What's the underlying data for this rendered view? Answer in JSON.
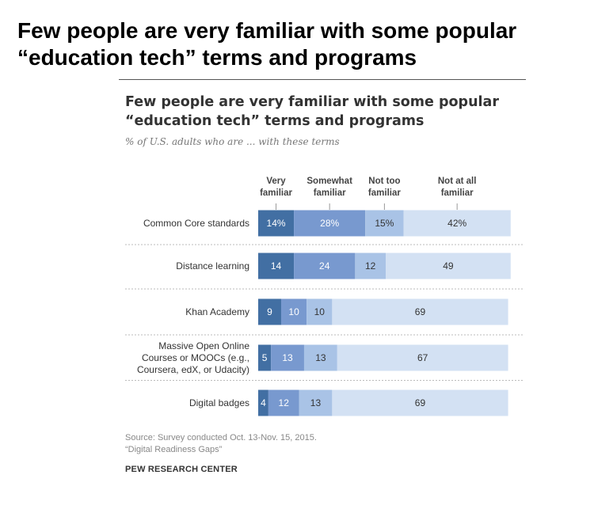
{
  "headline": "Few people are very familiar with some popular “education tech” terms and programs",
  "chart_data": {
    "type": "bar",
    "orientation": "horizontal",
    "stacked": true,
    "title_lines": [
      "Few people are very familiar with some popular",
      "“education tech” terms and programs"
    ],
    "subtitle": "% of U.S. adults who are ... with these terms",
    "series_label_lines": [
      [
        "Very",
        "familiar"
      ],
      [
        "Somewhat",
        "familiar"
      ],
      [
        "Not too",
        "familiar"
      ],
      [
        "Not at all",
        "familiar"
      ]
    ],
    "series": [
      {
        "name": "Very familiar",
        "color": "#426FA3",
        "text_color": "#ffffff",
        "values": [
          14,
          14,
          9,
          5,
          4
        ]
      },
      {
        "name": "Somewhat familiar",
        "color": "#7899CF",
        "text_color": "#ffffff",
        "values": [
          28,
          24,
          10,
          13,
          12
        ]
      },
      {
        "name": "Not too familiar",
        "color": "#A9C3E6",
        "text_color": "#333333",
        "values": [
          15,
          12,
          10,
          13,
          13
        ]
      },
      {
        "name": "Not at all familiar",
        "color": "#D3E1F3",
        "text_color": "#333333",
        "values": [
          42,
          49,
          69,
          67,
          69
        ]
      }
    ],
    "categories": [
      [
        "Common Core standards"
      ],
      [
        "Distance learning"
      ],
      [
        "Khan Academy"
      ],
      [
        "Massive Open Online",
        "Courses or MOOCs (e.g.,",
        "Coursera, edX, or Udacity)"
      ],
      [
        "Digital badges"
      ]
    ],
    "labels": [
      [
        "14%",
        "28%",
        "15%",
        "42%"
      ],
      [
        "14",
        "24",
        "12",
        "49"
      ],
      [
        "9",
        "10",
        "10",
        "69"
      ],
      [
        "5",
        "13",
        "13",
        "67"
      ],
      [
        "4",
        "12",
        "13",
        "69"
      ]
    ],
    "xlim": [
      0,
      100
    ]
  },
  "footer": {
    "source": "Source: Survey conducted Oct. 13-Nov. 15, 2015.",
    "report": "“Digital Readiness Gaps”",
    "org": "PEW RESEARCH CENTER"
  }
}
